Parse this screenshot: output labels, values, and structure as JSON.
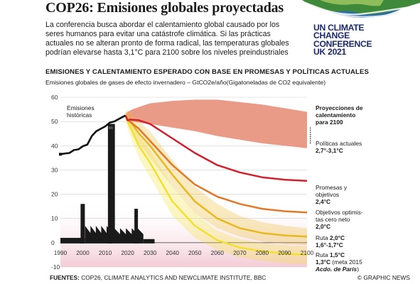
{
  "header": {
    "title": "COP26: Emisiones globales proyectadas",
    "lead": "La conferencia busca abordar el calentamiento global causado por los seres humanos para evitar una catástrofe climática. Si las prácticas actuales no se alteran pronto de forma radical, las temperaturas globales podrían elevarse hasta 3,1°C para 2100 sobre los niveles preindustriales"
  },
  "logo": {
    "lines": [
      "UN CLIMATE",
      "CHANGE",
      "CONFERENCE",
      "UK 2021"
    ],
    "color": "#1c2a6b"
  },
  "chart_data": {
    "type": "line",
    "title": "EMISIONES Y CALENTAMIENTO ESPERADO CON BASE EN PROMESAS Y POLÍTICAS ACTUALES",
    "ylabel": "Emisiones globales de gases de efecto invernadero – GtCO2e/año(Gigatoneladas de CO2 equivalente)",
    "xlim": [
      1990,
      2100
    ],
    "ylim": [
      -10,
      60
    ],
    "x_ticks": [
      "1990",
      "2000",
      "2010",
      "2020",
      "2030",
      "2040",
      "2050",
      "2060",
      "2070",
      "2080",
      "2090",
      "2100"
    ],
    "y_ticks": [
      "60",
      "50",
      "40",
      "30",
      "20",
      "10",
      "0",
      "-10"
    ],
    "grid": true,
    "series": [
      {
        "name": "Emisiones históricas",
        "color": "#111111",
        "x": [
          1990,
          1992,
          1994,
          1996,
          1998,
          2000,
          2002,
          2004,
          2006,
          2008,
          2010,
          2012,
          2014,
          2016,
          2018,
          2019
        ],
        "y": [
          36.5,
          36.8,
          37.0,
          38.2,
          38.5,
          39.8,
          40.5,
          44.0,
          46.0,
          47.0,
          48.0,
          49.5,
          50.0,
          51.0,
          52.0,
          52.5
        ]
      },
      {
        "name": "Políticas actuales",
        "color": "#e8907a",
        "band": true,
        "x": [
          2019,
          2020,
          2022,
          2025,
          2030,
          2040,
          2050,
          2060,
          2070,
          2080,
          2090,
          2100
        ],
        "upper": [
          53,
          54,
          55,
          56,
          57.5,
          58.5,
          59,
          59,
          58,
          57,
          55.5,
          54
        ],
        "lower": [
          52,
          51,
          50,
          49.5,
          49,
          47.5,
          46,
          44,
          42.5,
          41,
          40,
          39
        ]
      },
      {
        "name": "Promesas y objetivos",
        "color": "#d0202e",
        "x": [
          2019,
          2020,
          2021,
          2025,
          2030,
          2040,
          2050,
          2060,
          2070,
          2080,
          2090,
          2100
        ],
        "y": [
          52.5,
          50.5,
          50.8,
          50.5,
          49.0,
          43.0,
          37.0,
          32.0,
          29.0,
          27.0,
          26.0,
          25.5
        ]
      },
      {
        "name": "Objetivos optimistas cero neto",
        "color": "#e07a28",
        "x": [
          2019,
          2020,
          2021,
          2025,
          2030,
          2040,
          2050,
          2060,
          2070,
          2080,
          2090,
          2100
        ],
        "y": [
          52.5,
          50.5,
          50.0,
          47.0,
          42.0,
          32.0,
          24.0,
          19.0,
          16.0,
          14.0,
          13.0,
          12.5
        ]
      },
      {
        "name": "Ruta 2,0°C",
        "color": "#e8b820",
        "x": [
          2019,
          2020,
          2022,
          2025,
          2030,
          2040,
          2050,
          2060,
          2070,
          2080,
          2090,
          2100
        ],
        "y": [
          52.5,
          51.0,
          49.0,
          45.0,
          40.0,
          28.0,
          17.0,
          10.0,
          6.0,
          4.0,
          3.0,
          2.5
        ],
        "band_upper": [
          54,
          54.5,
          53,
          50,
          46,
          34,
          23,
          16,
          11,
          8.5,
          7,
          6
        ],
        "band_lower": [
          51,
          49,
          46,
          41,
          35,
          23,
          12,
          6,
          2.5,
          0.5,
          -0.5,
          -1
        ]
      },
      {
        "name": "Ruta 1,5°C",
        "color": "#f2e030",
        "x": [
          2019,
          2020,
          2022,
          2025,
          2030,
          2040,
          2050,
          2060,
          2070,
          2080,
          2090,
          2100
        ],
        "y": [
          52.5,
          50.0,
          46.0,
          40.0,
          33.0,
          17.0,
          7.0,
          1.0,
          -2.0,
          -3.5,
          -4.5,
          -5.0
        ],
        "band_upper": [
          53.5,
          52,
          49,
          44,
          38,
          23,
          12,
          5,
          1.5,
          0,
          -1,
          -1.5
        ],
        "band_lower": [
          51.5,
          47,
          42,
          35,
          27,
          11,
          2,
          -3,
          -6,
          -7.5,
          -8.5,
          -9
        ]
      }
    ],
    "annotations": [
      {
        "key": "historicas",
        "text": "Emisiones\nhistóricas"
      },
      {
        "key": "proyecciones",
        "text": "Proyecciones de\ncalentamiento\npara 2100"
      },
      {
        "key": "politicas",
        "label": "Políticas actuales",
        "value": "2,7°-3,1°C"
      },
      {
        "key": "promesas",
        "label": "Promesas y\nobjetivos",
        "value": "2,4°C"
      },
      {
        "key": "optimistas",
        "label": "Objetivos optimis-\ntas cero neto",
        "value": "2,0°C"
      },
      {
        "key": "ruta20",
        "label": "Ruta ",
        "label_bold": "2,0°C",
        "value": "1,6°-1,7°C"
      },
      {
        "key": "ruta15",
        "label": "Ruta ",
        "label_bold": "1,5°C",
        "value": "1,3°C",
        "value_suffix": " (meta 2015",
        "extra": "Acdo. de París",
        "extra_suffix": ")"
      }
    ]
  },
  "footer": {
    "sources_label": "FUENTES:",
    "sources": " COP26, CLIMATE ANALYTICS AND NEWCLIMATE INSTITUTE, BBC",
    "credit": "© GRAPHIC NEWS"
  }
}
